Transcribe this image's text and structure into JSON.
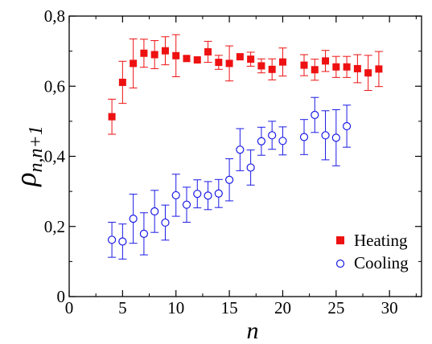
{
  "chart_data": {
    "type": "scatter",
    "title": "",
    "xlabel": "n",
    "ylabel": "ρ",
    "ylabel_subscript": "n,n+1",
    "xlim": [
      0,
      33
    ],
    "ylim": [
      0,
      0.8
    ],
    "xticks": [
      0,
      5,
      10,
      15,
      20,
      25,
      30
    ],
    "xtick_labels": [
      "0",
      "5",
      "10",
      "15",
      "20",
      "25",
      "30"
    ],
    "yticks": [
      0,
      0.2,
      0.4,
      0.6,
      0.8
    ],
    "ytick_labels": [
      "0",
      "0,2",
      "0,4",
      "0,6",
      "0,8"
    ],
    "grid": false,
    "legend_position": "bottom-right",
    "series": [
      {
        "name": "Heating",
        "marker": "filled-square",
        "color": "#ee1111",
        "points": [
          {
            "x": 4,
            "y": 0.513,
            "err": 0.05
          },
          {
            "x": 5,
            "y": 0.611,
            "err": 0.06
          },
          {
            "x": 6,
            "y": 0.665,
            "err": 0.07
          },
          {
            "x": 7,
            "y": 0.694,
            "err": 0.04
          },
          {
            "x": 8,
            "y": 0.69,
            "err": 0.04
          },
          {
            "x": 9,
            "y": 0.701,
            "err": 0.04
          },
          {
            "x": 10,
            "y": 0.687,
            "err": 0.06
          },
          {
            "x": 11,
            "y": 0.679,
            "err": 0.0
          },
          {
            "x": 12,
            "y": 0.675,
            "err": 0.0
          },
          {
            "x": 13,
            "y": 0.698,
            "err": 0.03
          },
          {
            "x": 14,
            "y": 0.668,
            "err": 0.02
          },
          {
            "x": 15,
            "y": 0.665,
            "err": 0.05
          },
          {
            "x": 16,
            "y": 0.684,
            "err": 0.0
          },
          {
            "x": 17,
            "y": 0.677,
            "err": 0.02
          },
          {
            "x": 18,
            "y": 0.658,
            "err": 0.02
          },
          {
            "x": 19,
            "y": 0.648,
            "err": 0.03
          },
          {
            "x": 20,
            "y": 0.669,
            "err": 0.04
          },
          {
            "x": 22,
            "y": 0.66,
            "err": 0.03
          },
          {
            "x": 23,
            "y": 0.647,
            "err": 0.03
          },
          {
            "x": 24,
            "y": 0.672,
            "err": 0.03
          },
          {
            "x": 25,
            "y": 0.655,
            "err": 0.03
          },
          {
            "x": 26,
            "y": 0.655,
            "err": 0.03
          },
          {
            "x": 27,
            "y": 0.65,
            "err": 0.04
          },
          {
            "x": 28,
            "y": 0.638,
            "err": 0.05
          },
          {
            "x": 29,
            "y": 0.649,
            "err": 0.05
          }
        ]
      },
      {
        "name": "Cooling",
        "marker": "open-circle",
        "color": "#1a1ae6",
        "points": [
          {
            "x": 4,
            "y": 0.162,
            "err": 0.05
          },
          {
            "x": 5,
            "y": 0.157,
            "err": 0.05
          },
          {
            "x": 6,
            "y": 0.222,
            "err": 0.07
          },
          {
            "x": 7,
            "y": 0.179,
            "err": 0.06
          },
          {
            "x": 8,
            "y": 0.243,
            "err": 0.06
          },
          {
            "x": 9,
            "y": 0.211,
            "err": 0.05
          },
          {
            "x": 10,
            "y": 0.289,
            "err": 0.06
          },
          {
            "x": 11,
            "y": 0.262,
            "err": 0.05
          },
          {
            "x": 12,
            "y": 0.293,
            "err": 0.04
          },
          {
            "x": 13,
            "y": 0.288,
            "err": 0.04
          },
          {
            "x": 14,
            "y": 0.294,
            "err": 0.04
          },
          {
            "x": 15,
            "y": 0.333,
            "err": 0.06
          },
          {
            "x": 16,
            "y": 0.419,
            "err": 0.06
          },
          {
            "x": 17,
            "y": 0.368,
            "err": 0.05
          },
          {
            "x": 18,
            "y": 0.443,
            "err": 0.04
          },
          {
            "x": 19,
            "y": 0.46,
            "err": 0.04
          },
          {
            "x": 20,
            "y": 0.444,
            "err": 0.04
          },
          {
            "x": 22,
            "y": 0.455,
            "err": 0.05
          },
          {
            "x": 23,
            "y": 0.518,
            "err": 0.05
          },
          {
            "x": 24,
            "y": 0.46,
            "err": 0.07
          },
          {
            "x": 25,
            "y": 0.453,
            "err": 0.08
          },
          {
            "x": 26,
            "y": 0.486,
            "err": 0.06
          }
        ]
      }
    ]
  }
}
